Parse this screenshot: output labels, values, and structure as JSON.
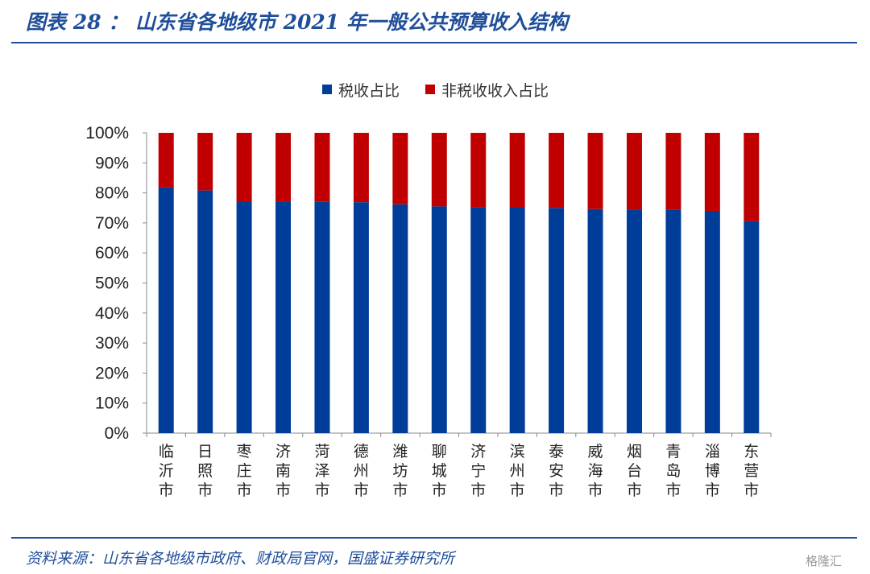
{
  "title": "图表 28 ： 山东省各地级市 2021 年一般公共预算收入结构",
  "source": "资料来源：山东省各地级市政府、财政局官网，国盛证券研究所",
  "watermark": "格隆汇",
  "colors": {
    "tax": "#003d99",
    "nontax": "#c00000",
    "accent": "#1f4e9a"
  },
  "chart_data": {
    "type": "bar",
    "stacked": true,
    "categories": [
      "临沂市",
      "日照市",
      "枣庄市",
      "济南市",
      "菏泽市",
      "德州市",
      "潍坊市",
      "聊城市",
      "济宁市",
      "滨州市",
      "泰安市",
      "威海市",
      "烟台市",
      "青岛市",
      "淄博市",
      "东营市"
    ],
    "series": [
      {
        "name": "税收占比",
        "values": [
          81.8,
          80.8,
          77.2,
          77.1,
          77.0,
          76.9,
          76.2,
          75.5,
          75.3,
          75.2,
          75.0,
          74.6,
          74.5,
          74.3,
          74.0,
          70.6
        ]
      },
      {
        "name": "非税收收入占比",
        "values": [
          18.2,
          19.2,
          22.8,
          22.9,
          23.0,
          23.1,
          23.8,
          24.5,
          24.7,
          24.8,
          25.0,
          25.4,
          25.5,
          25.7,
          26.0,
          29.4
        ]
      }
    ],
    "ylim": [
      0,
      100
    ],
    "yticks": [
      "0%",
      "10%",
      "20%",
      "30%",
      "40%",
      "50%",
      "60%",
      "70%",
      "80%",
      "90%",
      "100%"
    ],
    "legend_position": "top",
    "grid": false
  }
}
